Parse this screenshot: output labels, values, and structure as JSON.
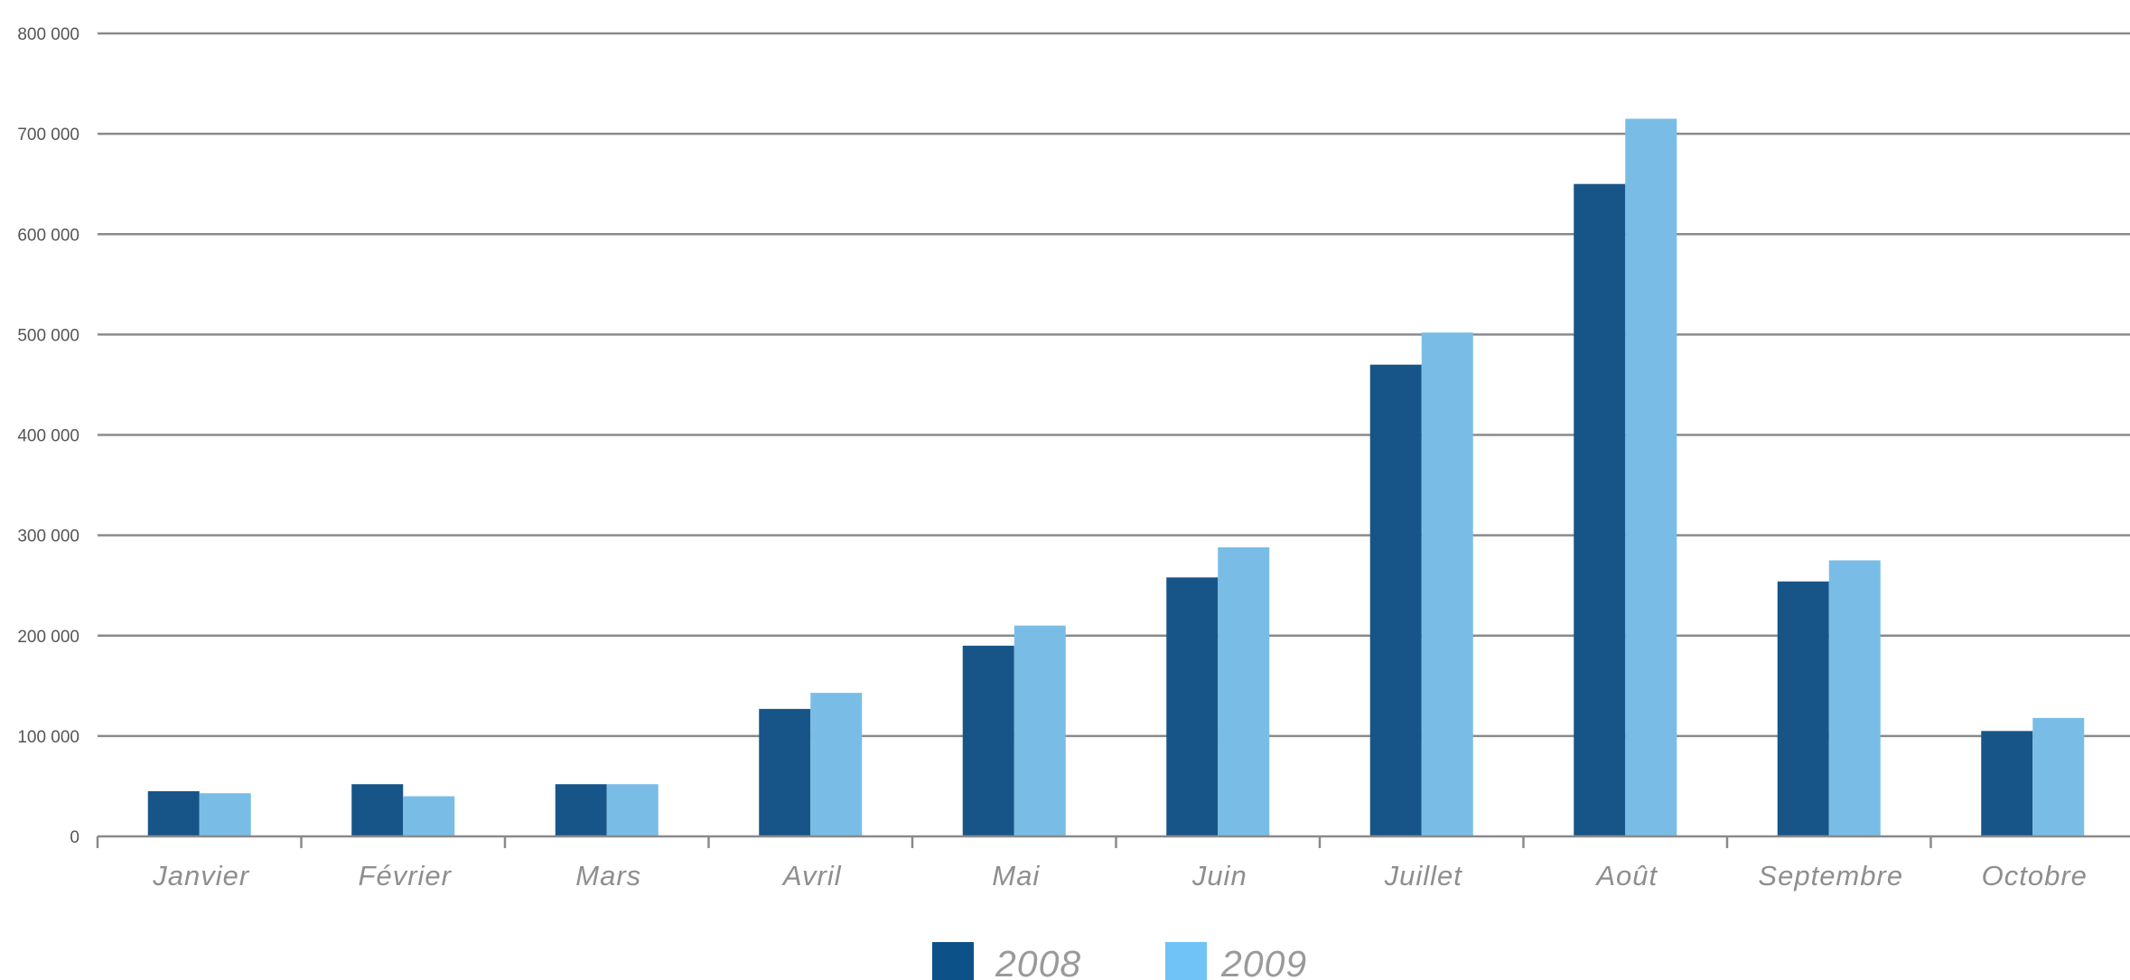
{
  "colors": {
    "series_2008": "#175589",
    "series_2009": "#79bde6",
    "legend_2008": "#0c5288",
    "legend_2009": "#6fc3f7",
    "gridline": "#8a8a8a",
    "axis": "#8a8a8a"
  },
  "chart_data": {
    "type": "bar",
    "title": "",
    "xlabel": "",
    "ylabel": "",
    "ylim": [
      0,
      800000
    ],
    "yticks": [
      0,
      100000,
      200000,
      300000,
      400000,
      500000,
      600000,
      700000,
      800000
    ],
    "ytick_labels": [
      "0",
      "100 000",
      "200 000",
      "300 000",
      "400 000",
      "500 000",
      "600 000",
      "700 000",
      "800 000"
    ],
    "grid": true,
    "legend_position": "bottom-center",
    "categories": [
      "Janvier",
      "Février",
      "Mars",
      "Avril",
      "Mai",
      "Juin",
      "Juillet",
      "Août",
      "Septembre",
      "Octobre"
    ],
    "series": [
      {
        "name": "2008",
        "values": [
          45000,
          52000,
          52000,
          127000,
          190000,
          258000,
          470000,
          650000,
          254000,
          105000
        ]
      },
      {
        "name": "2009",
        "values": [
          43000,
          40000,
          52000,
          143000,
          210000,
          288000,
          502000,
          715000,
          275000,
          118000
        ]
      }
    ]
  }
}
